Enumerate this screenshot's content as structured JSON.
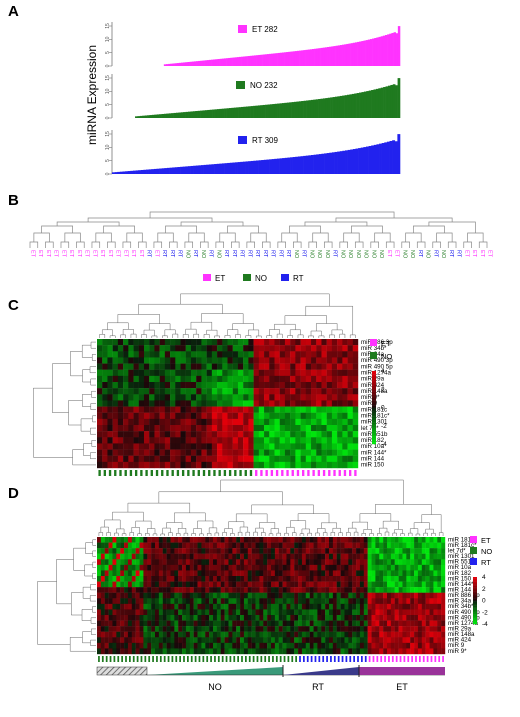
{
  "panels": {
    "A": {
      "label": "A",
      "ylabel": "miRNA Expression",
      "charts": [
        {
          "name": "ET 282",
          "color": "#ff33ff",
          "count": 282,
          "ticks": [
            "0",
            "5",
            "10",
            "15"
          ]
        },
        {
          "name": "NO 232",
          "color": "#1f7a1f",
          "count": 232,
          "ticks": [
            "0",
            "5",
            "10",
            "15"
          ]
        },
        {
          "name": "RT 309",
          "color": "#2222ee",
          "count": 309,
          "ticks": [
            "0",
            "5",
            "10",
            "15"
          ]
        }
      ]
    },
    "B": {
      "label": "B",
      "legend": [
        {
          "name": "ET",
          "color": "#ff33ff"
        },
        {
          "name": "NO",
          "color": "#1f7a1f"
        },
        {
          "name": "RT",
          "color": "#2222ee"
        }
      ]
    },
    "C": {
      "label": "C",
      "legend": [
        {
          "name": "ET",
          "color": "#ff33ff"
        },
        {
          "name": "NO",
          "color": "#1f7a1f"
        }
      ],
      "rows": [
        "miR 886 3p",
        "miR 34b*",
        "miR 34a",
        "miR 490 3p",
        "miR 490 5p",
        "miR 1274a",
        "miR 29a",
        "miR 424",
        "miR 148a",
        "miR 9*",
        "miR 9",
        "miR 181c",
        "miR 181c*",
        "miR 1301",
        "let 7d*",
        "miR 551b",
        "miR 182",
        "miR 10a",
        "miR 144*",
        "miR 144",
        "miR 150"
      ],
      "scale": [
        "4",
        "2",
        "0",
        "-2",
        "-4"
      ]
    },
    "D": {
      "label": "D",
      "legend": [
        {
          "name": "ET",
          "color": "#ff33ff"
        },
        {
          "name": "NO",
          "color": "#1f7a1f"
        },
        {
          "name": "RT",
          "color": "#2222ee"
        }
      ],
      "rows": [
        "miR 181c",
        "miR 181c*",
        "let 7d*",
        "miR 1301",
        "miR 551b",
        "miR 10a",
        "miR 182",
        "miR 150",
        "miR 144*",
        "miR 144",
        "miR 886 3p",
        "miR 34a",
        "miR 34b*",
        "miR 490 5p",
        "miR 490 3p",
        "miR 1274a",
        "miR 29a",
        "miR 148a",
        "miR 424",
        "miR 9",
        "miR 9*"
      ],
      "scale": [
        "4",
        "2",
        "0",
        "-2",
        "-4"
      ],
      "groups": [
        "NO",
        "RT",
        "ET"
      ]
    }
  }
}
